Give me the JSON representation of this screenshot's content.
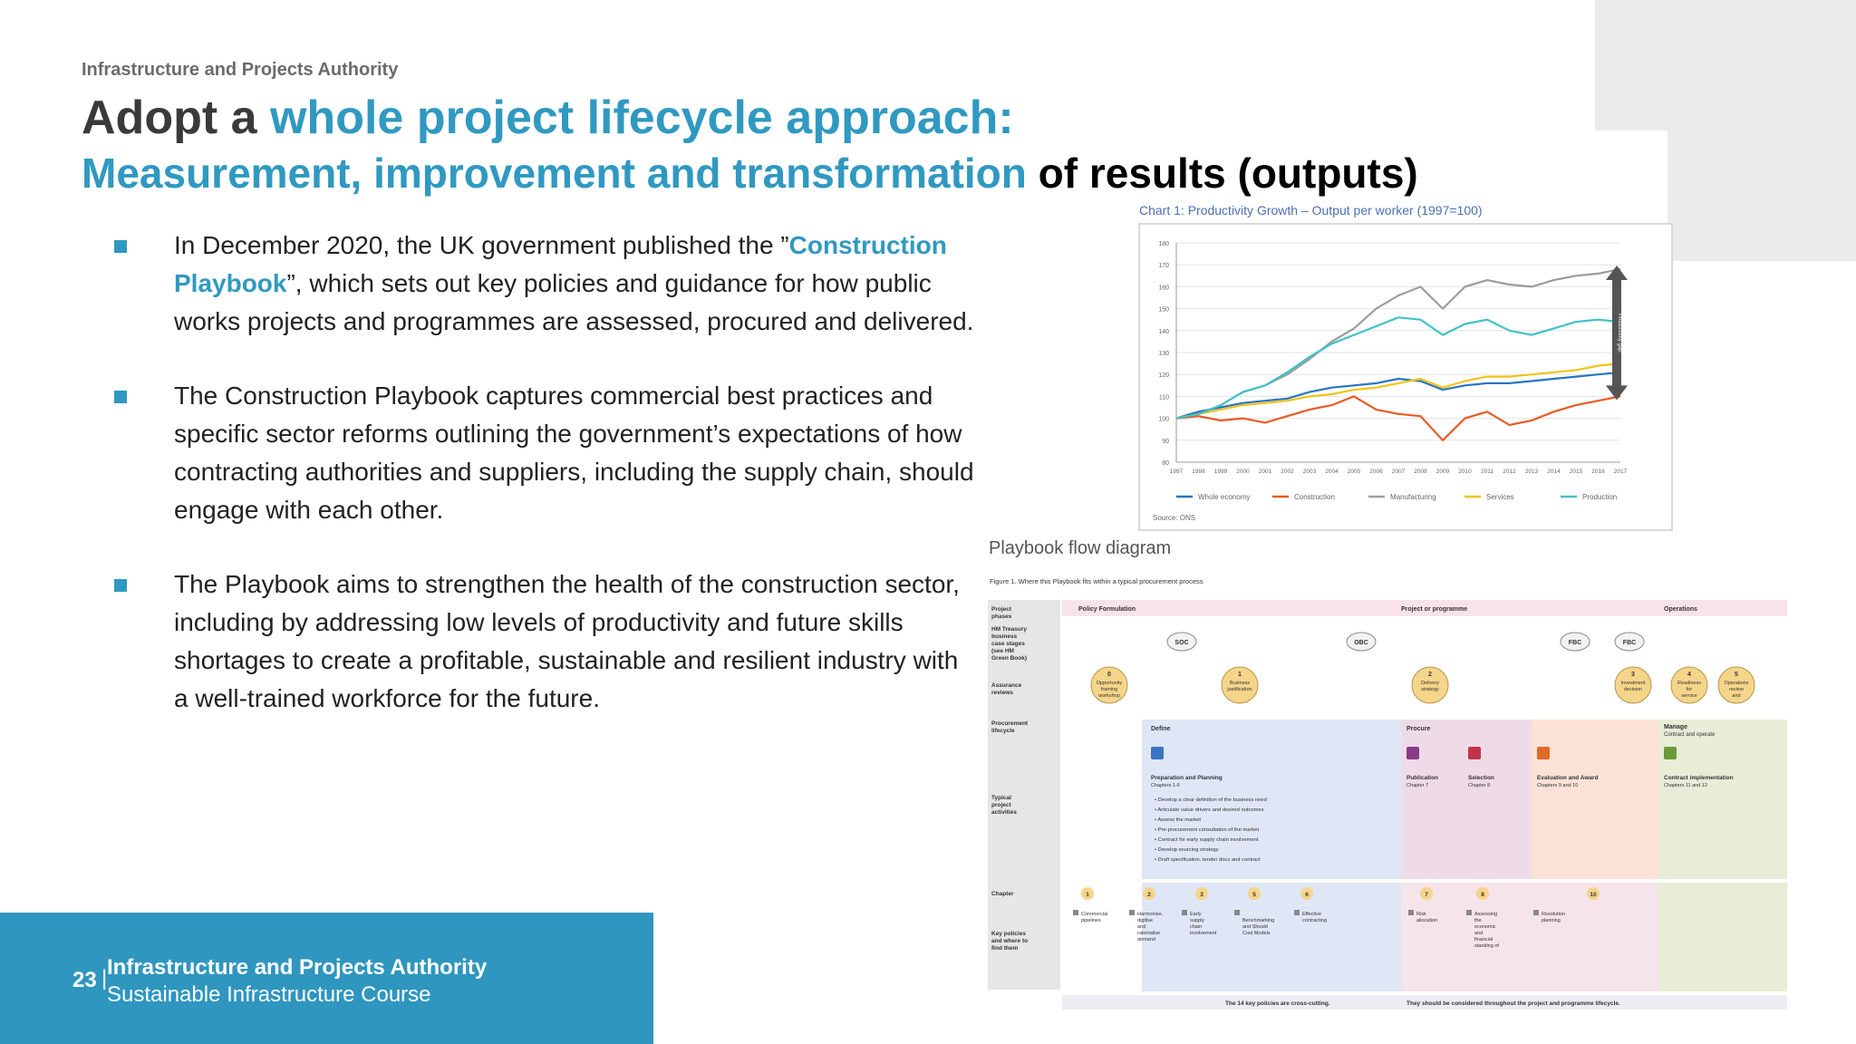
{
  "header": {
    "org_label": "Infrastructure and Projects Authority",
    "title_prefix": "Adopt a ",
    "title_accent": "whole project lifecycle approach:",
    "subtitle_accent": "Measurement, improvement and transformation",
    "subtitle_rest": " of results (outputs)"
  },
  "bullets": [
    {
      "pre": "In December 2020, the UK government published the ”",
      "highlight": "Construction Playbook",
      "post": "”, which sets out key policies and guidance for how public works projects and programmes are assessed, procured and delivered."
    },
    {
      "pre": "The Construction Playbook captures commercial best practices and specific sector reforms outlining the government’s expectations of how contracting authorities and suppliers, including the supply chain, should engage with each other.",
      "highlight": "",
      "post": ""
    },
    {
      "pre": "The Playbook aims to strengthen the health of the construction sector, including by addressing low levels of productivity and future skills shortages to create a profitable, sustainable and resilient industry with a well-trained workforce for the future.",
      "highlight": "",
      "post": ""
    }
  ],
  "chart_data": {
    "type": "line",
    "title": "Chart 1: Productivity Growth – Output per worker (1997=100)",
    "source": "Source: ONS",
    "gap_label": "Productivity gap",
    "x": [
      "1997",
      "1998",
      "1999",
      "2000",
      "2001",
      "2002",
      "2003",
      "2004",
      "2005",
      "2006",
      "2007",
      "2008",
      "2009",
      "2010",
      "2011",
      "2012",
      "2013",
      "2014",
      "2015",
      "2016",
      "2017"
    ],
    "ylim": [
      80,
      180
    ],
    "yticks": [
      80,
      90,
      100,
      110,
      120,
      130,
      140,
      150,
      160,
      170,
      180
    ],
    "grid": true,
    "legend_position": "bottom",
    "series": [
      {
        "name": "Whole economy",
        "color": "#2a73c2",
        "values": [
          100,
          103,
          105,
          107,
          108,
          109,
          112,
          114,
          115,
          116,
          118,
          117,
          113,
          115,
          116,
          116,
          117,
          118,
          119,
          120,
          121
        ]
      },
      {
        "name": "Construction",
        "color": "#ea5a22",
        "values": [
          100,
          101,
          99,
          100,
          98,
          101,
          104,
          106,
          110,
          104,
          102,
          101,
          90,
          100,
          103,
          97,
          99,
          103,
          106,
          108,
          110
        ]
      },
      {
        "name": "Manufacturing",
        "color": "#9c9c9c",
        "values": [
          100,
          102,
          106,
          112,
          115,
          120,
          127,
          135,
          141,
          150,
          156,
          160,
          150,
          160,
          163,
          161,
          160,
          163,
          165,
          166,
          168
        ]
      },
      {
        "name": "Services",
        "color": "#f2c318",
        "values": [
          100,
          102,
          104,
          106,
          107,
          108,
          110,
          111,
          113,
          114,
          116,
          118,
          114,
          117,
          119,
          119,
          120,
          121,
          122,
          124,
          125
        ]
      },
      {
        "name": "Production",
        "color": "#40c2c8",
        "values": [
          100,
          102,
          106,
          112,
          115,
          121,
          128,
          134,
          138,
          142,
          146,
          145,
          138,
          143,
          145,
          140,
          138,
          141,
          144,
          145,
          144
        ]
      }
    ]
  },
  "flow": {
    "title": "Playbook flow diagram",
    "figure_caption": "Figure 1. Where this Playbook fits within a typical procurement process",
    "row_labels": [
      "Project phases",
      "HM Treasury business case stages (see HM Green Book)",
      "Assurance reviews",
      "Procurement lifecycle",
      "Typical project activities",
      "Chapter",
      "Key policies and where to find them"
    ],
    "phases": [
      "Policy Formulation",
      "Project or programme",
      "Operations"
    ],
    "stages": [
      "SOC",
      "OBC",
      "FBC",
      "FBC"
    ],
    "reviews": [
      {
        "num": "0",
        "label": "Opportunity framing workshop"
      },
      {
        "num": "1",
        "label": "Business justification"
      },
      {
        "num": "2",
        "label": "Delivery strategy"
      },
      {
        "num": "3",
        "label": "Investment decision"
      },
      {
        "num": "4",
        "label": "Readiness for service"
      },
      {
        "num": "5",
        "label": "Operations review and benefits realisation"
      }
    ],
    "lifecycle": [
      "Define",
      "Procure",
      "Manage"
    ],
    "manage_sub": "Contract and operate",
    "activities": [
      {
        "title": "Preparation and Planning",
        "chapters": "Chapters 1-6"
      },
      {
        "title": "Publication",
        "chapters": "Chapter 7"
      },
      {
        "title": "Selection",
        "chapters": "Chapter 8"
      },
      {
        "title": "Evaluation and Award",
        "chapters": "Chapters 9 and 10"
      },
      {
        "title": "Contract implementation",
        "chapters": "Chapters 11 and 12"
      }
    ],
    "prep_items": [
      "Develop a clear definition of the business need",
      "Articulate value drivers and desired outcomes",
      "Assess the market",
      "Pre-procurement consultation of the market",
      "Contract for early supply chain involvement",
      "Develop sourcing strategy",
      "Draft specification, tender docs and contract"
    ],
    "chapter_numbers": [
      "1",
      "2",
      "3",
      "5",
      "6",
      "7",
      "8",
      "10"
    ],
    "policies": [
      "Commercial pipelines",
      "Harmonise, digitise and rationalise demand",
      "Early supply chain involvement",
      "Benchmarking and Should Cost Models",
      "Effective contracting",
      "Risk allocation",
      "Assessing the economic and financial standing of suppliers",
      "Resolution planning"
    ],
    "footer_left": "The 14 key policies are cross-cutting.",
    "footer_right": "They should be considered throughout the project and programme lifecycle."
  },
  "footer": {
    "page_number": "23",
    "separator": "|",
    "org": "Infrastructure and Projects Authority",
    "course": "Sustainable Infrastructure Course"
  },
  "colors": {
    "accent": "#3099c1",
    "footer_bg": "#2f96c0",
    "corner_gray": "#ebebec"
  }
}
